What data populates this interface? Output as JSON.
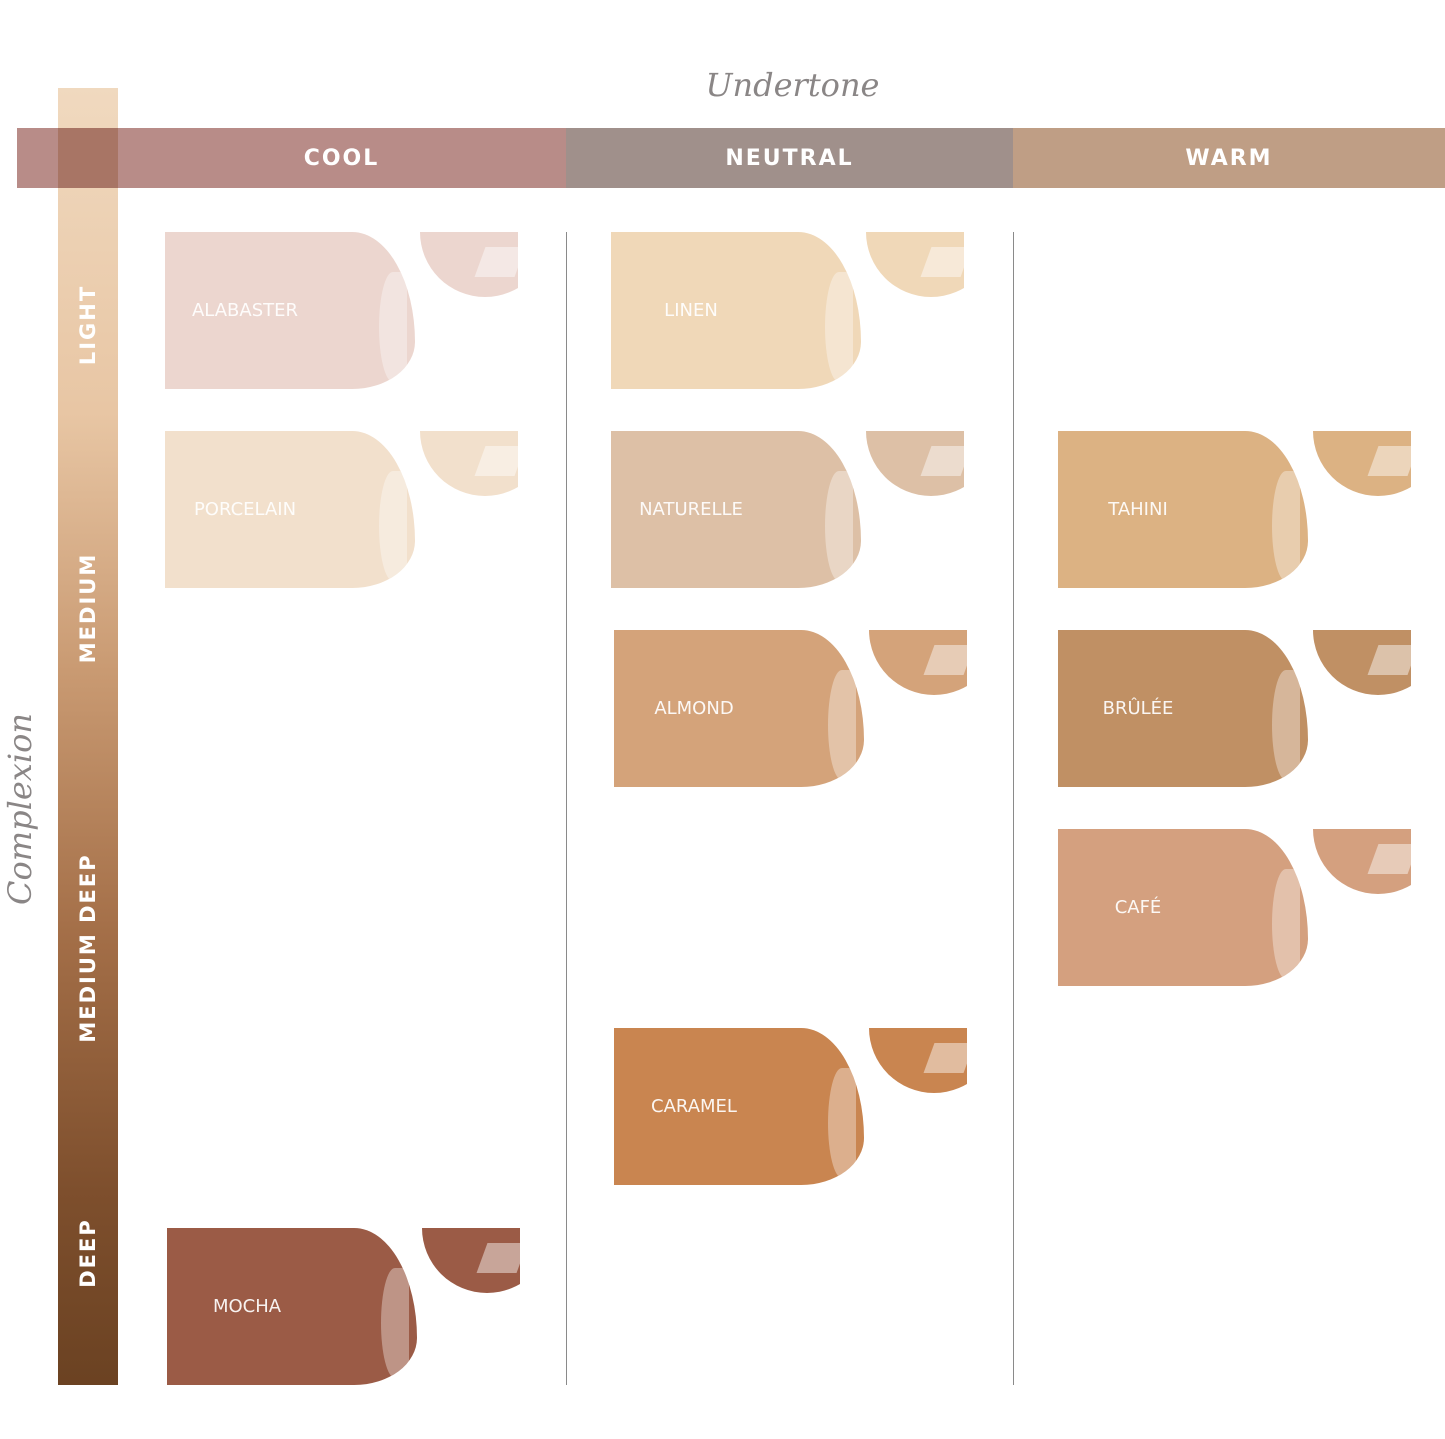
{
  "axes": {
    "undertone": "Undertone",
    "complexion": "Complexion"
  },
  "undertones": [
    {
      "label": "COOL",
      "color": "#b88c88"
    },
    {
      "label": "NEUTRAL",
      "color": "#a0908b"
    },
    {
      "label": "WARM",
      "color": "#bf9e85"
    }
  ],
  "complexions": [
    "LIGHT",
    "MEDIUM",
    "MEDIUM DEEP",
    "DEEP"
  ],
  "shades": [
    {
      "name": "ALABASTER",
      "undertone": "COOL",
      "color": "#ecd6cf"
    },
    {
      "name": "PORCELAIN",
      "undertone": "COOL",
      "color": "#f2e0cc"
    },
    {
      "name": "MOCHA",
      "undertone": "COOL",
      "color": "#9b5b46"
    },
    {
      "name": "LINEN",
      "undertone": "NEUTRAL",
      "color": "#f0d8b8"
    },
    {
      "name": "NATURELLE",
      "undertone": "NEUTRAL",
      "color": "#ddc0a6"
    },
    {
      "name": "ALMOND",
      "undertone": "NEUTRAL",
      "color": "#d4a37a"
    },
    {
      "name": "CARAMEL",
      "undertone": "NEUTRAL",
      "color": "#c98550"
    },
    {
      "name": "TAHINI",
      "undertone": "WARM",
      "color": "#dcb283"
    },
    {
      "name": "BRÛLÉE",
      "undertone": "WARM",
      "color": "#c09064"
    },
    {
      "name": "CAFÉ",
      "undertone": "WARM",
      "color": "#d4a07f"
    }
  ]
}
